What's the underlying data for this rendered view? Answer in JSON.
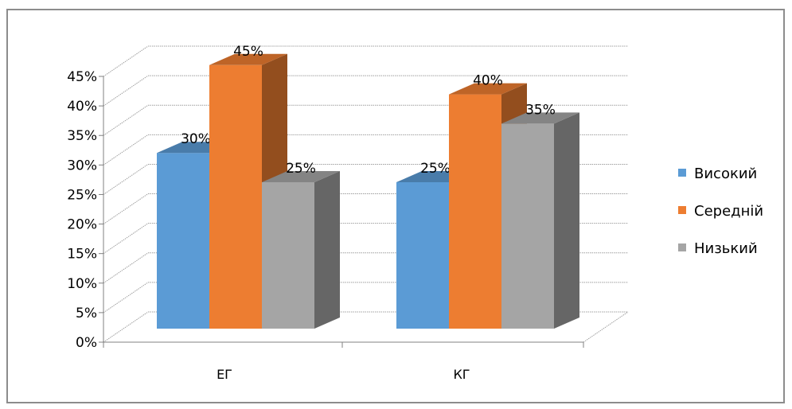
{
  "chart_data": {
    "type": "bar",
    "categories": [
      "ЕГ",
      "КГ"
    ],
    "series": [
      {
        "name": "Високий",
        "values": [
          30,
          25
        ],
        "color": "#5b9bd5"
      },
      {
        "name": "Середній",
        "values": [
          45,
          40
        ],
        "color": "#ed7d31"
      },
      {
        "name": "Низький",
        "values": [
          25,
          35
        ],
        "color": "#a5a5a5"
      }
    ],
    "data_labels": [
      [
        "30%",
        "25%"
      ],
      [
        "45%",
        "40%"
      ],
      [
        "25%",
        "35%"
      ]
    ],
    "y_ticks": [
      "0%",
      "5%",
      "10%",
      "15%",
      "20%",
      "25%",
      "30%",
      "35%",
      "40%",
      "45%"
    ],
    "ylim": [
      0,
      45
    ],
    "grid": true,
    "three_d": true,
    "legend_position": "right"
  }
}
